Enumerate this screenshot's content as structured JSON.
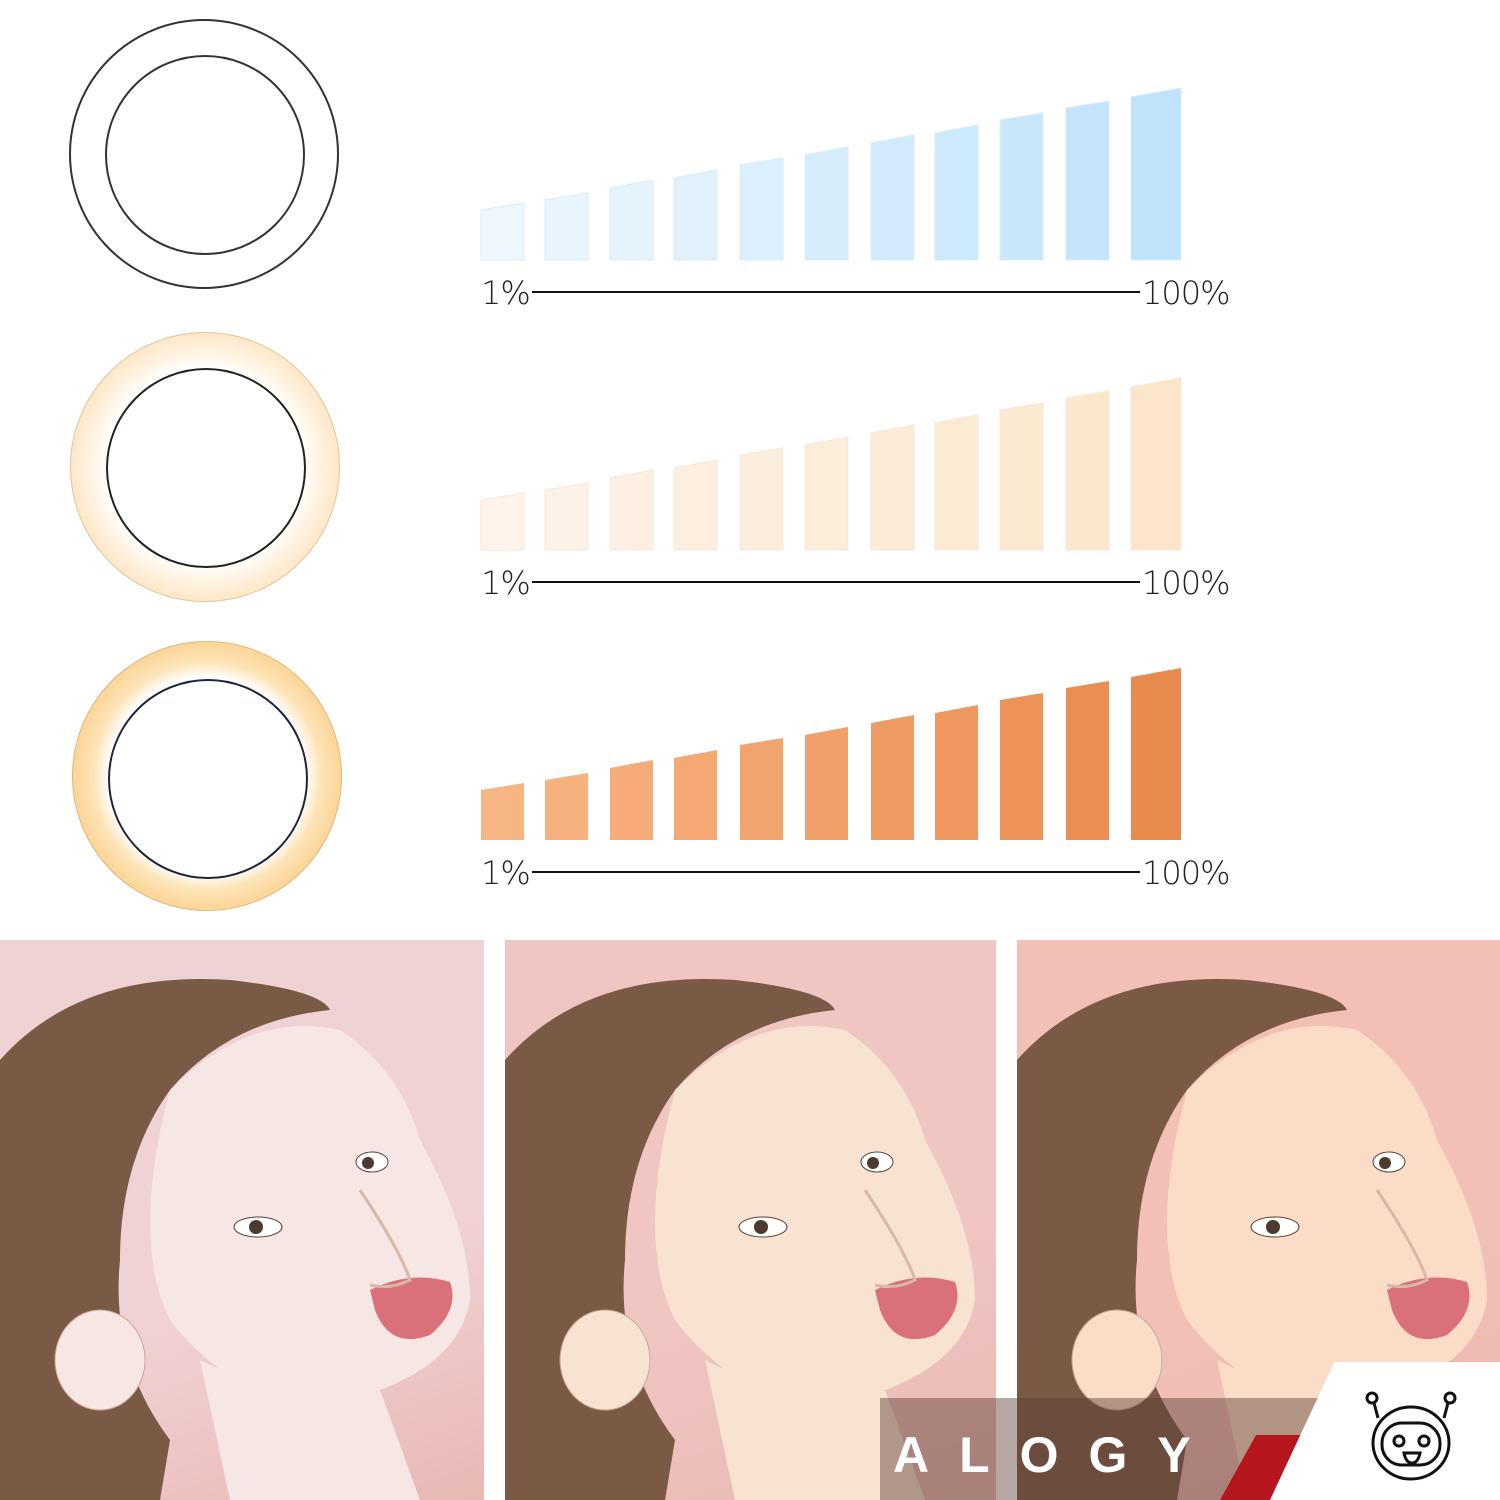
{
  "modes": [
    {
      "ring_color": "#ffffff",
      "bar_colors": [
        "#eef7fd",
        "#bfe3fb"
      ],
      "min_label": "1%",
      "max_label": "100%"
    },
    {
      "ring_color": "#fde6c2",
      "bar_colors": [
        "#fdf3ea",
        "#fbe6c9"
      ],
      "min_label": "1%",
      "max_label": "100%"
    },
    {
      "ring_color": "#fbcf8a",
      "bar_colors": [
        "#f8b584",
        "#e98a4f"
      ],
      "min_label": "1%",
      "max_label": "100%"
    }
  ],
  "brightness_levels": 11,
  "photos": [
    {
      "tone": "cool",
      "background": "#f1d2d4",
      "skin": "#f6e6e4"
    },
    {
      "tone": "neutral",
      "background": "#f0c6c2",
      "skin": "#f8e2d2"
    },
    {
      "tone": "warm",
      "background": "#f2c0b5",
      "skin": "#fbdcc6"
    }
  ],
  "brand": {
    "name": "ALOGY",
    "accent": "#b5161b",
    "icon": "robot-mascot-icon"
  }
}
